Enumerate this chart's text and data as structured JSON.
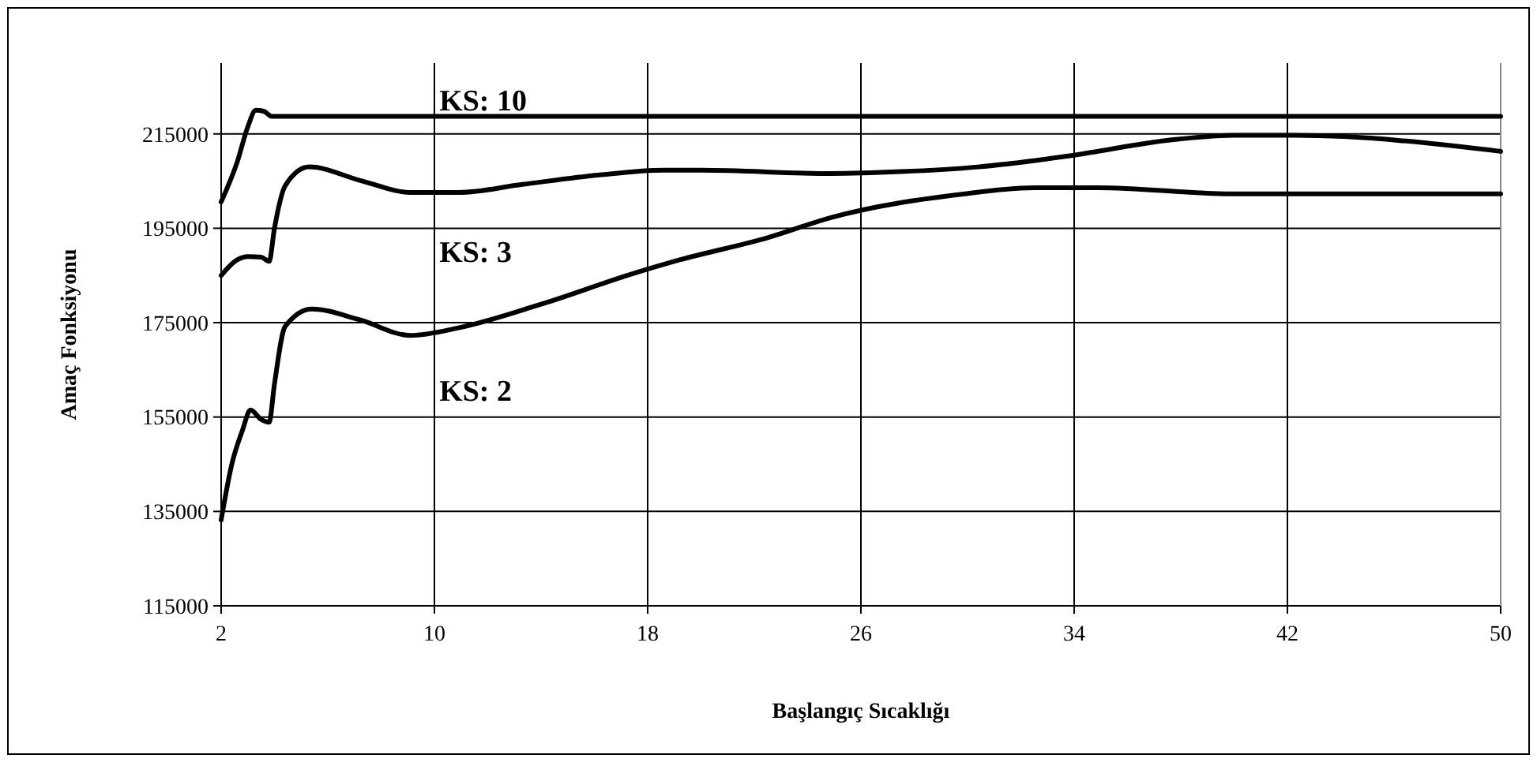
{
  "chart_data": {
    "type": "line",
    "xlabel": "Başlangıç Sıcaklığı",
    "ylabel": "Amaç Fonksiyonu",
    "xlim": [
      2,
      50
    ],
    "xticks": [
      2,
      10,
      18,
      26,
      34,
      42,
      50
    ],
    "ylim": [
      115000,
      230000
    ],
    "yticks": [
      115000,
      135000,
      155000,
      175000,
      195000,
      215000
    ],
    "grid": true,
    "marker": "none",
    "line_style": "solid",
    "series": [
      {
        "name": "KS: 10",
        "color": "#000000",
        "x": [
          2,
          2.6,
          3.0,
          3.3,
          3.6,
          3.9,
          5,
          10,
          20,
          30,
          40,
          50
        ],
        "values": [
          200600,
          209000,
          216500,
          220000,
          219800,
          218700,
          218700,
          218700,
          218700,
          218700,
          218700,
          218700
        ]
      },
      {
        "name": "KS: 3",
        "color": "#000000",
        "x": [
          2,
          2.6,
          3.0,
          3.5,
          3.8,
          4,
          4.4,
          5.3,
          7.3,
          9.1,
          10.9,
          13.3,
          16.2,
          18.6,
          20,
          24.9,
          27.5,
          30.4,
          34,
          37.6,
          40,
          42.3,
          50
        ],
        "values": [
          185000,
          188300,
          189000,
          188900,
          188000,
          195000,
          204000,
          208000,
          205000,
          202600,
          202600,
          204300,
          206300,
          207300,
          207300,
          206600,
          207000,
          208000,
          210500,
          213700,
          214700,
          214700,
          211300
        ]
      },
      {
        "name": "KS: 2",
        "color": "#000000",
        "x": [
          2,
          2.4,
          2.8,
          3.1,
          3.5,
          3.8,
          4.0,
          4.4,
          5.4,
          7.2,
          9.1,
          10.9,
          14,
          17.4,
          19.2,
          22.5,
          24.9,
          29.9,
          32.5,
          34.9,
          39.9,
          50
        ],
        "values": [
          133200,
          145000,
          152200,
          156500,
          154500,
          153900,
          162000,
          174200,
          177900,
          175600,
          172300,
          173900,
          178900,
          185300,
          188300,
          193000,
          197300,
          202300,
          203600,
          203600,
          202300,
          202300
        ]
      }
    ]
  }
}
